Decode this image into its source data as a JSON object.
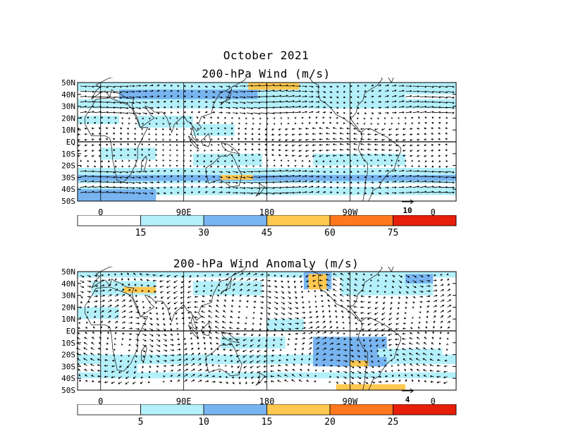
{
  "figure": {
    "title_line1": "October 2021",
    "panel1_title": "200-hPa Wind (m/s)",
    "panel2_title": "200-hPa Wind Anomaly (m/s)"
  },
  "lat_labels": [
    "50N",
    "40N",
    "30N",
    "20N",
    "10N",
    "EQ",
    "10S",
    "20S",
    "30S",
    "40S",
    "50S"
  ],
  "lon_labels": [
    "0",
    "90E",
    "180",
    "90W",
    "0"
  ],
  "panel1": {
    "reference_vector": "10",
    "colorbar": {
      "ticks": [
        "15",
        "30",
        "45",
        "60",
        "75"
      ],
      "colors": [
        "#ffffff",
        "#b4f0fa",
        "#78b4f0",
        "#ffc850",
        "#ff781e",
        "#e61e0a"
      ]
    }
  },
  "panel2": {
    "reference_vector": "4",
    "colorbar": {
      "ticks": [
        "5",
        "10",
        "15",
        "20",
        "25"
      ],
      "colors": [
        "#ffffff",
        "#b4f0fa",
        "#78b4f0",
        "#ffc850",
        "#ff781e",
        "#e61e0a"
      ]
    }
  }
}
